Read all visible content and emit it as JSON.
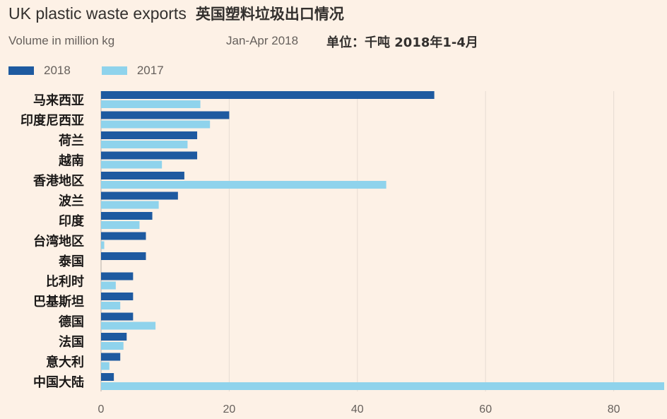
{
  "chart_data": {
    "type": "bar",
    "orientation": "horizontal",
    "title": "UK plastic waste exports",
    "title_zh": "英国塑料垃圾出口情况",
    "subtitle": "Volume in million kg",
    "period": "Jan-Apr 2018",
    "unit_zh": "单位：千吨  2018年1-4月",
    "categories": [
      "马来西亚",
      "印度尼西亚",
      "荷兰",
      "越南",
      "香港地区",
      "波兰",
      "印度",
      "台湾地区",
      "泰国",
      "比利时",
      "巴基斯坦",
      "德国",
      "法国",
      "意大利",
      "中国大陆"
    ],
    "series": [
      {
        "name": "2018",
        "color": "#1e5aa0",
        "values": [
          52,
          20,
          15,
          15,
          13,
          12,
          8,
          7,
          7,
          5,
          5,
          5,
          4,
          3,
          2
        ]
      },
      {
        "name": "2017",
        "color": "#8fd3ec",
        "values": [
          15.5,
          17,
          13.5,
          9.5,
          44.5,
          9,
          6,
          0.5,
          0,
          2.3,
          3,
          8.5,
          3.5,
          1.3,
          88
        ]
      }
    ],
    "xlim": [
      0,
      88
    ],
    "xticks": [
      "0",
      "20",
      "40",
      "60",
      "80"
    ],
    "grid": true,
    "legend_position": "top-left"
  }
}
